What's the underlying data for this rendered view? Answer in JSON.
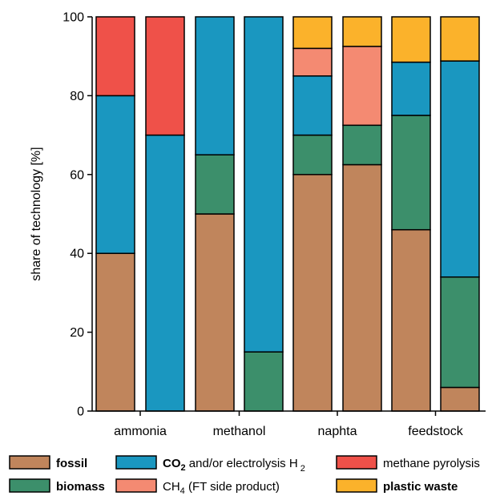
{
  "chart_data": {
    "type": "bar",
    "stacked": true,
    "ylabel": "share of technology [%]",
    "ylim": [
      0,
      100
    ],
    "yticks": [
      0,
      20,
      40,
      60,
      80,
      100
    ],
    "groups": [
      "ammonia",
      "methanol",
      "naphta",
      "feedstock"
    ],
    "bars_per_group": 2,
    "colors": {
      "fossil": "#C0855C",
      "co2": "#1A97C0",
      "methane_pyrolysis": "#EF5149",
      "biomass": "#3C8F6B",
      "ch4_ft": "#F48A72",
      "plastic_waste": "#FBB22B"
    },
    "series_order": [
      "fossil",
      "biomass",
      "co2",
      "ch4_ft",
      "plastic_waste",
      "methane_pyrolysis"
    ],
    "bars": [
      {
        "group": "ammonia",
        "segments": {
          "fossil": 40,
          "biomass": 0,
          "co2": 40,
          "ch4_ft": 0,
          "plastic_waste": 0,
          "methane_pyrolysis": 20
        }
      },
      {
        "group": "ammonia",
        "segments": {
          "fossil": 0,
          "biomass": 0,
          "co2": 70,
          "ch4_ft": 0,
          "plastic_waste": 0,
          "methane_pyrolysis": 30
        }
      },
      {
        "group": "methanol",
        "segments": {
          "fossil": 50,
          "biomass": 15,
          "co2": 35,
          "ch4_ft": 0,
          "plastic_waste": 0,
          "methane_pyrolysis": 0
        }
      },
      {
        "group": "methanol",
        "segments": {
          "fossil": 0,
          "biomass": 15,
          "co2": 85,
          "ch4_ft": 0,
          "plastic_waste": 0,
          "methane_pyrolysis": 0
        }
      },
      {
        "group": "naphta",
        "segments": {
          "fossil": 60,
          "co2": 15,
          "biomass": 10,
          "ch4_ft": 7,
          "plastic_waste": 8,
          "methane_pyrolysis": 0
        }
      },
      {
        "group": "naphta",
        "segments": {
          "fossil": 62.5,
          "biomass": 10,
          "ch4_ft": 20,
          "plastic_waste": 7.5,
          "co2": 0,
          "methane_pyrolysis": 0
        }
      },
      {
        "group": "feedstock",
        "segments": {
          "fossil": 46,
          "biomass": 29,
          "plastic_waste": 11.5,
          "co2": 13.5,
          "ch4_ft": 0,
          "methane_pyrolysis": 0
        }
      },
      {
        "group": "feedstock",
        "segments": {
          "fossil": 6,
          "biomass": 28,
          "plastic_waste": 11.2,
          "co2": 54.8,
          "ch4_ft": 0,
          "methane_pyrolysis": 0
        }
      }
    ],
    "legend": {
      "fossil": "fossil",
      "co2_main": "CO",
      "co2_sub": "2",
      "co2_rest": " and/or electrolysis H",
      "co2_h_sub": "2",
      "methane_pyrolysis": "methane pyrolysis",
      "biomass": "biomass",
      "ch4_main": "CH",
      "ch4_sub": "4",
      "ch4_rest": " (FT side product)",
      "plastic_waste": "plastic waste"
    },
    "legend_placement": "bottom"
  }
}
